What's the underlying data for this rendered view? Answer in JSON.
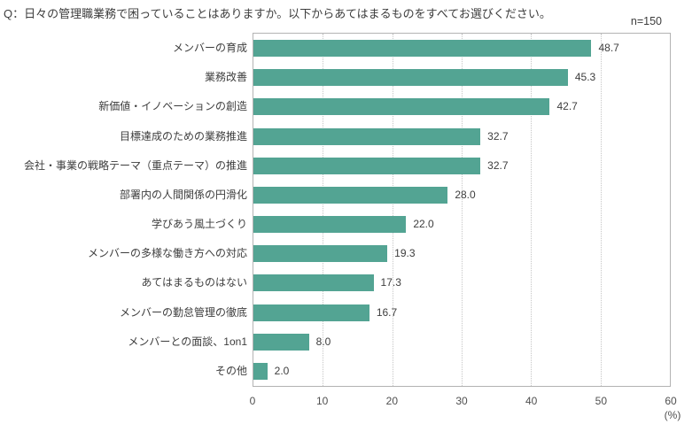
{
  "header": {
    "question": "Q：日々の管理職業務で困っていることはありますか。以下からあてはまるものをすべてお選びください。",
    "sample_size": "n=150"
  },
  "chart_data": {
    "type": "bar",
    "orientation": "horizontal",
    "title": "Q：日々の管理職業務で困っていることはありますか。以下からあてはまるものをすべてお選びください。",
    "n_annotation": "n=150",
    "categories": [
      "メンバーの育成",
      "業務改善",
      "新価値・イノベーションの創造",
      "目標達成のための業務推進",
      "会社・事業の戦略テーマ（重点テーマ）の推進",
      "部署内の人間関係の円滑化",
      "学びあう風土づくり",
      "メンバーの多様な働き方への対応",
      "あてはまるものはない",
      "メンバーの勤怠管理の徹底",
      "メンバーとの面談、1on1",
      "その他"
    ],
    "values": [
      48.7,
      45.3,
      42.7,
      32.7,
      32.7,
      28.0,
      22.0,
      19.3,
      17.3,
      16.7,
      8.0,
      2.0
    ],
    "value_labels": [
      "48.7",
      "45.3",
      "42.7",
      "32.7",
      "32.7",
      "28.0",
      "22.0",
      "19.3",
      "17.3",
      "16.7",
      "8.0",
      "2.0"
    ],
    "xlabel": "",
    "ylabel": "",
    "xlim": [
      0,
      60
    ],
    "x_ticks": [
      0,
      10,
      20,
      30,
      40,
      50,
      60
    ],
    "x_unit": "(%)",
    "grid": "vertical-dotted",
    "legend": "none",
    "bar_color": "#53a493"
  },
  "colors": {
    "bar": "#53a493",
    "plot_border": "#b3b3b3",
    "gridline": "#c6c6c6",
    "text": "#3d3d3d",
    "axis_text": "#4f4f4f",
    "background": "#ffffff"
  }
}
